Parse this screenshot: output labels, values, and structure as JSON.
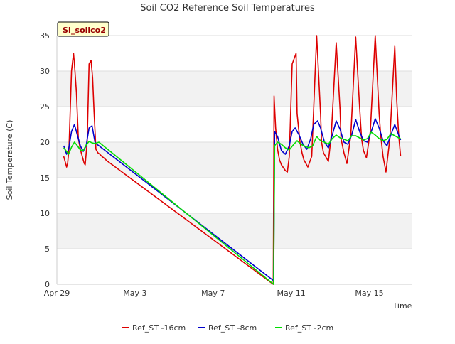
{
  "chart_data": {
    "type": "line",
    "title": "Soil CO2 Reference Soil Temperatures",
    "xlabel": "Time",
    "ylabel": "Soil Temperature (C)",
    "tag_label": "SI_soilco2",
    "x_ticks": [
      "Apr 29",
      "May 3",
      "May 7",
      "May 11",
      "May 15"
    ],
    "x_tick_days": [
      0,
      4,
      8,
      12,
      16
    ],
    "xlim_days": [
      0,
      18.2
    ],
    "ylim": [
      0,
      35
    ],
    "y_ticks": [
      0,
      5,
      10,
      15,
      20,
      25,
      30,
      35
    ],
    "grid_bands": true,
    "legend_position": "bottom",
    "series": [
      {
        "name": "Ref_ST -16cm",
        "color": "#dd0000",
        "x": [
          0.35,
          0.5,
          0.55,
          0.62,
          0.75,
          0.85,
          0.9,
          1.0,
          1.1,
          1.2,
          1.3,
          1.4,
          1.45,
          1.55,
          1.65,
          1.75,
          1.83,
          1.9,
          2.0,
          2.1,
          2.2,
          2.3,
          2.4,
          2.48,
          2.55,
          2.65,
          11.08,
          11.12,
          11.2,
          11.3,
          11.4,
          11.5,
          11.6,
          11.7,
          11.8,
          11.9,
          12.05,
          12.25,
          12.3,
          12.45,
          12.55,
          12.65,
          12.85,
          13.05,
          13.3,
          13.5,
          13.55,
          13.65,
          13.9,
          14.05,
          14.3,
          14.5,
          14.55,
          14.7,
          14.85,
          15.05,
          15.3,
          15.5,
          15.6,
          15.7,
          15.85,
          16.05,
          16.3,
          16.5,
          16.58,
          16.7,
          16.85,
          17.05,
          17.3,
          17.4,
          17.5,
          17.6
        ],
        "y": [
          18.0,
          16.5,
          17.0,
          19.0,
          30.0,
          32.5,
          31.0,
          27.0,
          20.5,
          19.0,
          18.0,
          17.0,
          16.8,
          20.0,
          31.0,
          31.5,
          29.0,
          24.5,
          19.0,
          18.5,
          18.3,
          18.0,
          17.8,
          17.6,
          17.4,
          17.2,
          0.0,
          26.5,
          22.0,
          19.0,
          17.5,
          16.8,
          16.4,
          16.0,
          15.8,
          18.0,
          31.0,
          32.5,
          24.0,
          20.0,
          18.5,
          17.5,
          16.5,
          18.0,
          35.0,
          24.0,
          20.0,
          18.5,
          17.3,
          21.0,
          34.0,
          24.5,
          20.5,
          18.5,
          17.0,
          21.0,
          34.8,
          25.0,
          20.5,
          18.8,
          17.8,
          21.5,
          35.0,
          24.0,
          21.0,
          18.0,
          15.8,
          20.5,
          33.5,
          26.0,
          21.0,
          18.0
        ]
      },
      {
        "name": "Ref_ST -8cm",
        "color": "#0000cc",
        "x": [
          0.35,
          0.5,
          0.6,
          0.75,
          0.9,
          1.05,
          1.2,
          1.35,
          1.5,
          1.65,
          1.8,
          1.95,
          2.05,
          2.15,
          11.1,
          11.15,
          11.3,
          11.5,
          11.7,
          11.9,
          12.05,
          12.2,
          12.4,
          12.6,
          12.8,
          13.0,
          13.15,
          13.35,
          13.5,
          13.7,
          13.9,
          14.1,
          14.3,
          14.5,
          14.7,
          14.9,
          15.1,
          15.3,
          15.5,
          15.7,
          15.9,
          16.1,
          16.3,
          16.5,
          16.7,
          16.9,
          17.1,
          17.3,
          17.5,
          17.6
        ],
        "y": [
          19.5,
          18.3,
          19.0,
          21.5,
          22.5,
          21.0,
          19.5,
          18.7,
          19.5,
          22.0,
          22.3,
          20.0,
          19.7,
          19.5,
          0.5,
          21.5,
          20.8,
          18.8,
          18.3,
          19.5,
          21.5,
          22.0,
          21.0,
          19.7,
          19.0,
          20.5,
          22.5,
          23.0,
          22.0,
          20.0,
          19.2,
          21.0,
          23.0,
          21.8,
          20.0,
          19.7,
          21.0,
          23.2,
          21.5,
          20.2,
          20.0,
          21.5,
          23.3,
          22.0,
          20.2,
          19.5,
          21.0,
          22.5,
          21.0,
          20.3
        ]
      },
      {
        "name": "Ref_ST -2cm",
        "color": "#00dd00",
        "x": [
          0.35,
          0.5,
          0.6,
          0.75,
          0.9,
          1.05,
          1.2,
          1.35,
          1.5,
          1.65,
          1.8,
          1.95,
          2.05,
          2.15,
          11.1,
          11.15,
          11.3,
          11.5,
          11.7,
          11.9,
          12.1,
          12.3,
          12.5,
          12.7,
          12.9,
          13.1,
          13.3,
          13.5,
          13.7,
          13.9,
          14.1,
          14.3,
          14.5,
          14.7,
          14.9,
          15.1,
          15.3,
          15.5,
          15.7,
          15.9,
          16.1,
          16.3,
          16.5,
          16.7,
          16.9,
          17.1,
          17.3,
          17.5,
          17.6
        ],
        "y": [
          19.2,
          18.7,
          18.3,
          19.3,
          20.0,
          19.5,
          18.9,
          18.8,
          19.6,
          20.1,
          19.9,
          19.8,
          19.9,
          20.0,
          0.0,
          19.5,
          20.0,
          19.7,
          19.2,
          18.9,
          19.6,
          20.2,
          19.7,
          19.4,
          19.2,
          19.5,
          20.8,
          20.2,
          20.0,
          19.7,
          20.5,
          21.0,
          20.6,
          20.4,
          20.2,
          20.9,
          20.9,
          20.6,
          20.3,
          20.5,
          21.4,
          21.0,
          20.5,
          20.2,
          20.4,
          21.2,
          20.9,
          20.6,
          20.5
        ]
      }
    ]
  }
}
